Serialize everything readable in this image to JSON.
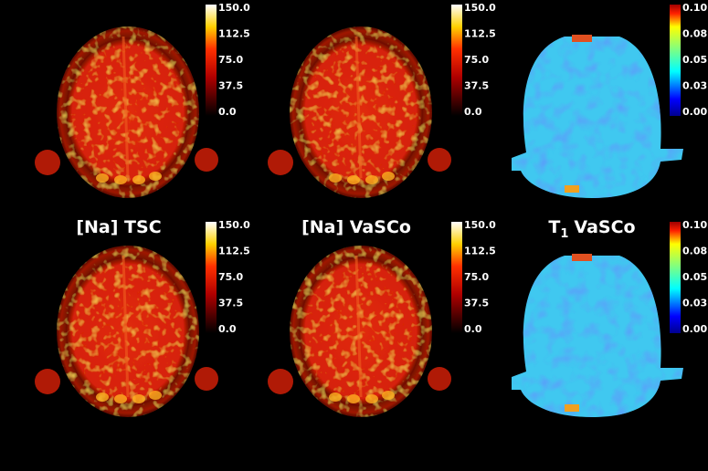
{
  "column_labels": [
    {
      "text": "[Na] TSC"
    },
    {
      "text": "[Na] VaSCo"
    },
    {
      "main": "T",
      "sub": "1",
      "rest": "VaSCo"
    }
  ],
  "panels": [
    {
      "colorbar_ticks": [
        "150.0",
        "112.5",
        "75.0",
        "37.5",
        "0.0"
      ]
    },
    {
      "colorbar_ticks": [
        "150.0",
        "112.5",
        "75.0",
        "37.5",
        "0.0"
      ]
    },
    {
      "colorbar_ticks": [
        "0.10",
        "0.08",
        "0.05",
        "0.03",
        "0.00"
      ]
    },
    {
      "colorbar_ticks": [
        "150.0",
        "112.5",
        "75.0",
        "37.5",
        "0.0"
      ]
    },
    {
      "colorbar_ticks": [
        "150.0",
        "112.5",
        "75.0",
        "37.5",
        "0.0"
      ]
    },
    {
      "colorbar_ticks": [
        "0.10",
        "0.08",
        "0.05",
        "0.03",
        "0.00"
      ]
    }
  ]
}
